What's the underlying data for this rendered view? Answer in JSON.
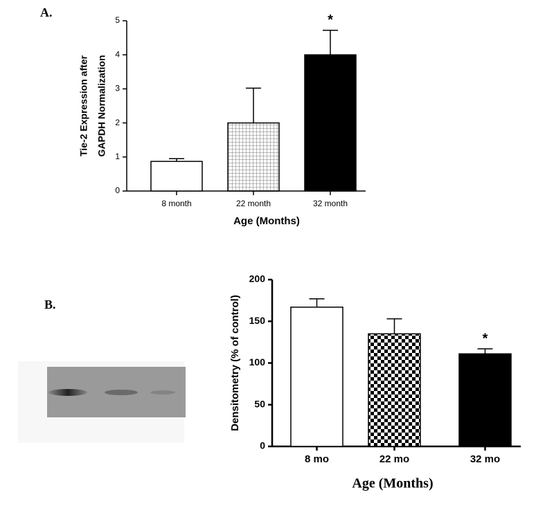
{
  "chart_data": [
    {
      "type": "bar",
      "panel": "A.",
      "ylabel": [
        "Tie-2 Expression after",
        "GAPDH Normalization"
      ],
      "xlabel": "Age (Months)",
      "categories": [
        "8 month",
        "22 month",
        "32 month"
      ],
      "values": [
        0.87,
        2.0,
        4.0
      ],
      "errors": [
        0.08,
        1.02,
        0.72
      ],
      "fills": [
        "white",
        "grid",
        "black"
      ],
      "annotation": "*",
      "ylim": [
        0,
        5
      ],
      "yticks": [
        0,
        1,
        2,
        3,
        4,
        5
      ]
    },
    {
      "type": "bar",
      "panel": "B.",
      "ylabel": [
        "Densitometry (% of control)"
      ],
      "xlabel": "Age (Months)",
      "categories": [
        "8 mo",
        "22 mo",
        "32 mo"
      ],
      "values": [
        167,
        135,
        111
      ],
      "errors": [
        10,
        18,
        6
      ],
      "fills": [
        "white",
        "checker",
        "black"
      ],
      "annotation": "*",
      "ylim": [
        0,
        200
      ],
      "yticks": [
        0,
        50,
        100,
        150,
        200
      ]
    }
  ]
}
